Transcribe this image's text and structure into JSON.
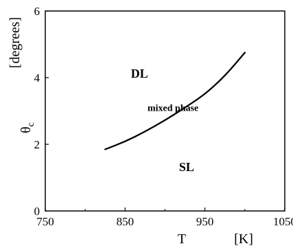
{
  "chart_data": {
    "type": "line",
    "xlabel": "T",
    "xunit": "[K]",
    "ylabel_symbol": "θ",
    "ylabel_subscript": "c",
    "ylabel_unit": "[degrees]",
    "xlim": [
      750,
      1050
    ],
    "ylim": [
      0,
      6
    ],
    "x_ticks": [
      750,
      850,
      950,
      1050
    ],
    "y_ticks": [
      0,
      2,
      4,
      6
    ],
    "grid": false,
    "series": [
      {
        "x": [
          825,
          850,
          875,
          900,
          925,
          950,
          975,
          1000
        ],
        "y": [
          1.85,
          2.08,
          2.38,
          2.72,
          3.1,
          3.5,
          4.05,
          4.75
        ]
      }
    ],
    "annotations": [
      {
        "text": "DL",
        "x": 868,
        "y": 4.0,
        "size": "large"
      },
      {
        "text": "mixed phase",
        "x": 910,
        "y": 3.0,
        "size": "small"
      },
      {
        "text": "SL",
        "x": 927,
        "y": 1.2,
        "size": "large"
      }
    ]
  }
}
